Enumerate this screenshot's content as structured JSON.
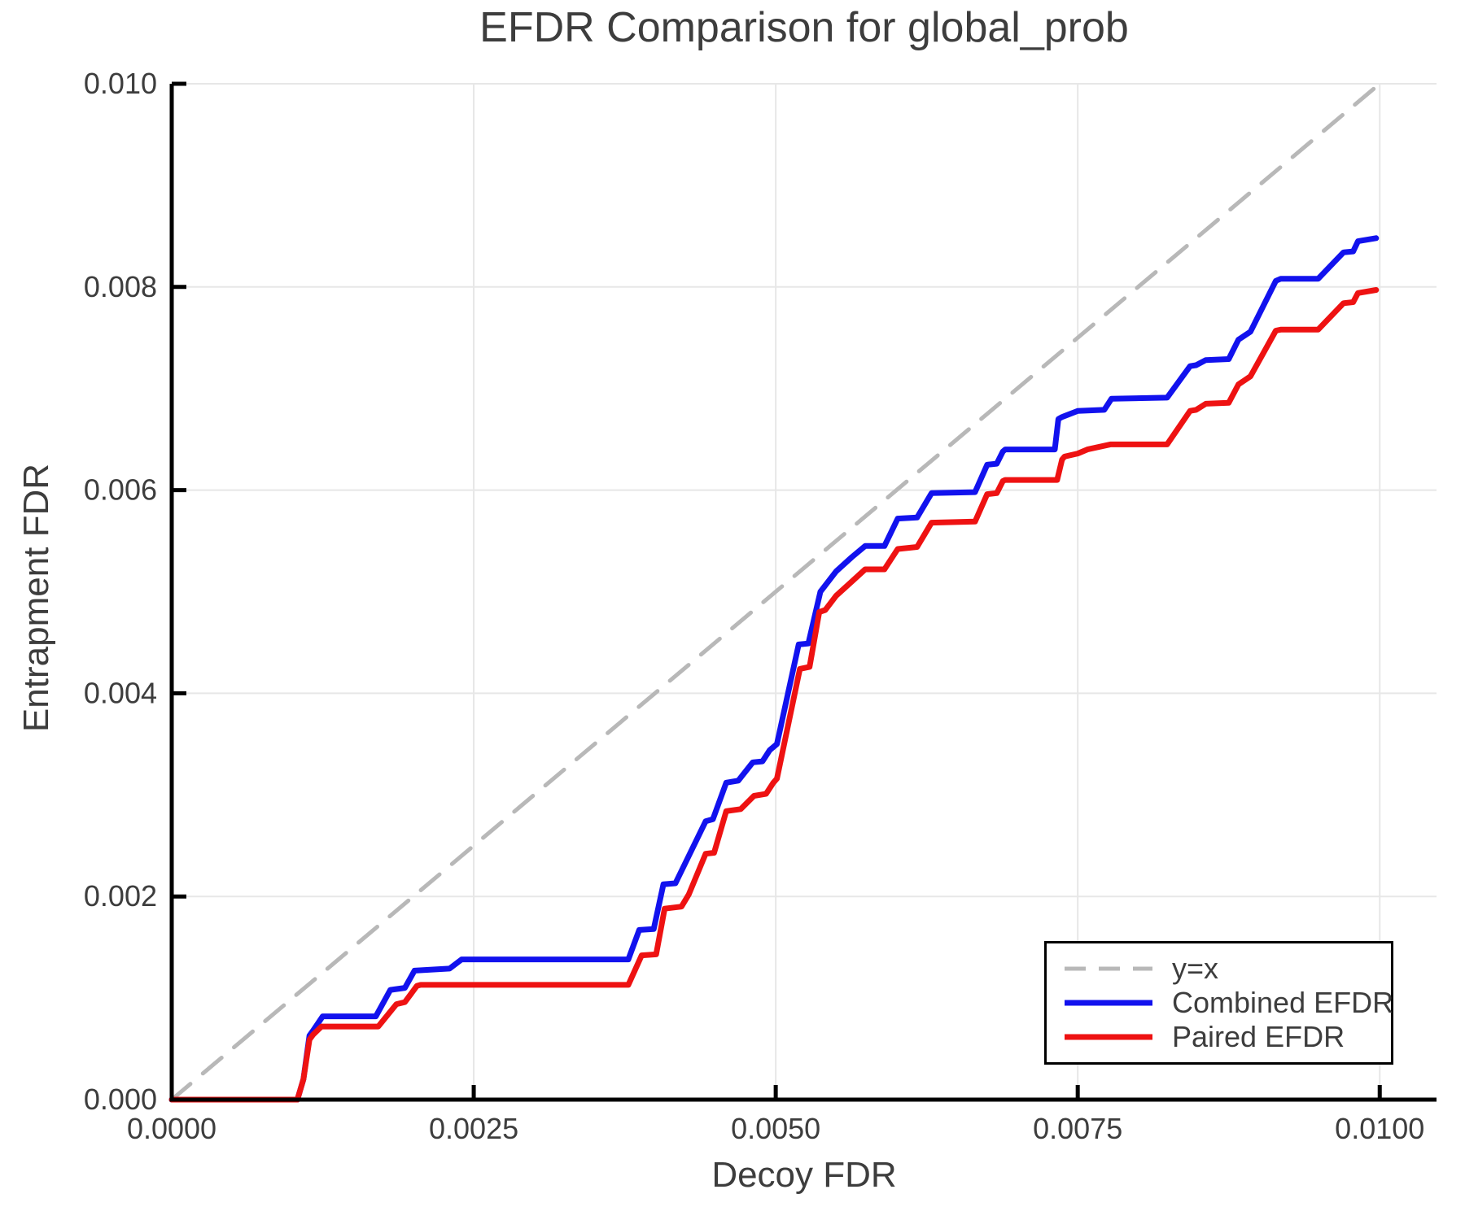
{
  "chart_data": {
    "type": "line",
    "title": "EFDR Comparison for global_prob",
    "xlabel": "Decoy FDR",
    "ylabel": "Entrapment FDR",
    "xlim": [
      0,
      0.01047
    ],
    "ylim": [
      0,
      0.01
    ],
    "grid": true,
    "legend_position": "lower right",
    "x_ticks": {
      "values": [
        0,
        0.0025,
        0.005,
        0.0075,
        0.01
      ],
      "labels": [
        "0.0000",
        "0.0025",
        "0.0050",
        "0.0075",
        "0.0100"
      ]
    },
    "y_ticks": {
      "values": [
        0,
        0.002,
        0.004,
        0.006,
        0.008,
        0.01
      ],
      "labels": [
        "0.000",
        "0.002",
        "0.004",
        "0.006",
        "0.008",
        "0.010"
      ]
    },
    "colors": {
      "grid": "#e7e7e7",
      "spine": "#000000",
      "text": "#3d3d3d",
      "reference": "#b8b8b8",
      "combined": "#1212ee",
      "paired": "#ee1212"
    },
    "series": [
      {
        "name": "y=x",
        "style": "dashed",
        "color": "#b8b8b8",
        "points": [
          [
            0,
            0
          ],
          [
            0.01,
            0.01
          ]
        ]
      },
      {
        "name": "Combined EFDR",
        "style": "solid",
        "color": "#1212ee",
        "points": [
          [
            0,
            0
          ],
          [
            0.00104,
            0
          ],
          [
            0.00109,
            0.0002
          ],
          [
            0.00114,
            0.00063
          ],
          [
            0.00117,
            0.00068
          ],
          [
            0.00125,
            0.00082
          ],
          [
            0.00169,
            0.00082
          ],
          [
            0.00181,
            0.00108
          ],
          [
            0.00193,
            0.0011
          ],
          [
            0.00201,
            0.00127
          ],
          [
            0.0023,
            0.00129
          ],
          [
            0.0024,
            0.00138
          ],
          [
            0.00378,
            0.00138
          ],
          [
            0.00387,
            0.00167
          ],
          [
            0.00399,
            0.00168
          ],
          [
            0.00407,
            0.00212
          ],
          [
            0.00417,
            0.00213
          ],
          [
            0.00442,
            0.00274
          ],
          [
            0.00448,
            0.00276
          ],
          [
            0.00459,
            0.00312
          ],
          [
            0.00469,
            0.00314
          ],
          [
            0.00481,
            0.00332
          ],
          [
            0.00489,
            0.00333
          ],
          [
            0.00495,
            0.00344
          ],
          [
            0.00501,
            0.0035
          ],
          [
            0.00519,
            0.00448
          ],
          [
            0.00527,
            0.00449
          ],
          [
            0.00537,
            0.005
          ],
          [
            0.0055,
            0.0052
          ],
          [
            0.00563,
            0.00534
          ],
          [
            0.00574,
            0.00545
          ],
          [
            0.0059,
            0.00545
          ],
          [
            0.00601,
            0.00572
          ],
          [
            0.00617,
            0.00573
          ],
          [
            0.00629,
            0.00597
          ],
          [
            0.00665,
            0.00598
          ],
          [
            0.00675,
            0.00625
          ],
          [
            0.00683,
            0.00626
          ],
          [
            0.00688,
            0.00638
          ],
          [
            0.0069,
            0.0064
          ],
          [
            0.00731,
            0.0064
          ],
          [
            0.00734,
            0.0067
          ],
          [
            0.00737,
            0.00672
          ],
          [
            0.0075,
            0.00678
          ],
          [
            0.00772,
            0.00679
          ],
          [
            0.00778,
            0.0069
          ],
          [
            0.00824,
            0.00691
          ],
          [
            0.00843,
            0.00722
          ],
          [
            0.00848,
            0.00723
          ],
          [
            0.00856,
            0.00728
          ],
          [
            0.00875,
            0.00729
          ],
          [
            0.00883,
            0.00748
          ],
          [
            0.00893,
            0.00756
          ],
          [
            0.00914,
            0.00806
          ],
          [
            0.00918,
            0.00808
          ],
          [
            0.00949,
            0.00808
          ],
          [
            0.0097,
            0.00834
          ],
          [
            0.00978,
            0.00835
          ],
          [
            0.00982,
            0.00845
          ],
          [
            0.00997,
            0.00848
          ]
        ]
      },
      {
        "name": "Paired EFDR",
        "style": "solid",
        "color": "#ee1212",
        "points": [
          [
            0,
            0
          ],
          [
            0.00104,
            0
          ],
          [
            0.00109,
            0.0002
          ],
          [
            0.00114,
            0.00059
          ],
          [
            0.00117,
            0.00064
          ],
          [
            0.00124,
            0.00072
          ],
          [
            0.00171,
            0.00072
          ],
          [
            0.00186,
            0.00094
          ],
          [
            0.00193,
            0.00096
          ],
          [
            0.00203,
            0.00112
          ],
          [
            0.00206,
            0.00113
          ],
          [
            0.00378,
            0.00113
          ],
          [
            0.00389,
            0.00142
          ],
          [
            0.00401,
            0.00143
          ],
          [
            0.00408,
            0.00188
          ],
          [
            0.00422,
            0.0019
          ],
          [
            0.00428,
            0.00202
          ],
          [
            0.00442,
            0.00242
          ],
          [
            0.00449,
            0.00243
          ],
          [
            0.00459,
            0.00284
          ],
          [
            0.00471,
            0.00286
          ],
          [
            0.00482,
            0.00299
          ],
          [
            0.00492,
            0.00301
          ],
          [
            0.00498,
            0.00312
          ],
          [
            0.00501,
            0.00316
          ],
          [
            0.0052,
            0.00424
          ],
          [
            0.00528,
            0.00426
          ],
          [
            0.00536,
            0.0048
          ],
          [
            0.00541,
            0.00482
          ],
          [
            0.0055,
            0.00496
          ],
          [
            0.00563,
            0.0051
          ],
          [
            0.00574,
            0.00522
          ],
          [
            0.0059,
            0.00522
          ],
          [
            0.00601,
            0.00542
          ],
          [
            0.00617,
            0.00544
          ],
          [
            0.00629,
            0.00568
          ],
          [
            0.00665,
            0.00569
          ],
          [
            0.00675,
            0.00596
          ],
          [
            0.00683,
            0.00597
          ],
          [
            0.00688,
            0.00609
          ],
          [
            0.0069,
            0.0061
          ],
          [
            0.00733,
            0.0061
          ],
          [
            0.00737,
            0.0063
          ],
          [
            0.00739,
            0.00633
          ],
          [
            0.0075,
            0.00636
          ],
          [
            0.00758,
            0.0064
          ],
          [
            0.00777,
            0.00645
          ],
          [
            0.00824,
            0.00645
          ],
          [
            0.00843,
            0.00678
          ],
          [
            0.00848,
            0.00679
          ],
          [
            0.00856,
            0.00685
          ],
          [
            0.00875,
            0.00686
          ],
          [
            0.00883,
            0.00704
          ],
          [
            0.00893,
            0.00712
          ],
          [
            0.00914,
            0.00757
          ],
          [
            0.00918,
            0.00758
          ],
          [
            0.00949,
            0.00758
          ],
          [
            0.0097,
            0.00784
          ],
          [
            0.00978,
            0.00785
          ],
          [
            0.00982,
            0.00794
          ],
          [
            0.00997,
            0.00797
          ]
        ]
      }
    ]
  }
}
